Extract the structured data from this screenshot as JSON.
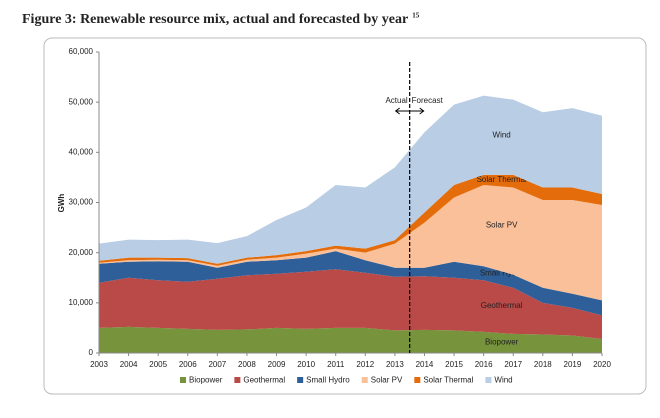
{
  "chart_data": {
    "type": "stacked_area",
    "title": "Figure 3: Renewable resource mix, actual and forecasted by year",
    "title_footnote": "15",
    "y_label": "GWh",
    "annotations": {
      "left": "Actual",
      "right": "Forecast"
    },
    "divider_x": 2013.5,
    "x": [
      2003,
      2004,
      2005,
      2006,
      2007,
      2008,
      2009,
      2010,
      2011,
      2012,
      2013,
      2014,
      2015,
      2016,
      2017,
      2018,
      2019,
      2020
    ],
    "xlim": [
      2003,
      2020
    ],
    "xticks": [
      2003,
      2004,
      2005,
      2006,
      2007,
      2008,
      2009,
      2010,
      2011,
      2012,
      2013,
      2014,
      2015,
      2016,
      2017,
      2018,
      2019,
      2020
    ],
    "ylim": [
      0,
      60000
    ],
    "yticks": [
      0,
      {
        "value": 10000,
        "label": "10,000"
      },
      {
        "value": 20000,
        "label": "20,000"
      },
      {
        "value": 30000,
        "label": "30,000"
      },
      {
        "value": 40000,
        "label": "40,000"
      },
      {
        "value": 50000,
        "label": "50,000"
      },
      {
        "value": 60000,
        "label": "60,000"
      }
    ],
    "series": [
      {
        "name": "Biopower",
        "color": "#77933c",
        "values": [
          5000,
          5200,
          5000,
          4800,
          4600,
          4700,
          5000,
          4800,
          5000,
          5000,
          4500,
          4600,
          4500,
          4200,
          3800,
          3700,
          3500,
          2800
        ]
      },
      {
        "name": "Geothermal",
        "color": "#b94a48",
        "values": [
          9000,
          9800,
          9500,
          9400,
          10200,
          10800,
          10800,
          11400,
          11700,
          11000,
          10700,
          10700,
          10500,
          10300,
          9200,
          6300,
          5500,
          4700
        ]
      },
      {
        "name": "Small Hydro",
        "color": "#2f5f98",
        "values": [
          3800,
          3200,
          3800,
          4000,
          2200,
          2700,
          2700,
          2800,
          3600,
          2500,
          1800,
          1700,
          3200,
          2800,
          2600,
          3000,
          2800,
          3000
        ]
      },
      {
        "name": "Solar PV",
        "color": "#f9c09a",
        "values": [
          200,
          300,
          300,
          300,
          400,
          400,
          500,
          800,
          500,
          1500,
          4800,
          9000,
          12800,
          16200,
          17400,
          17500,
          18700,
          19000
        ]
      },
      {
        "name": "Solar Thermal",
        "color": "#e46c0a",
        "values": [
          400,
          500,
          400,
          400,
          400,
          400,
          500,
          500,
          600,
          800,
          700,
          2000,
          2500,
          2000,
          2500,
          2500,
          2500,
          2200
        ]
      },
      {
        "name": "Wind",
        "color": "#b9cde5",
        "values": [
          3400,
          3600,
          3500,
          3700,
          4100,
          4300,
          7000,
          8700,
          12100,
          12200,
          14500,
          16000,
          16000,
          15800,
          15000,
          15000,
          15800,
          15600
        ]
      }
    ]
  }
}
